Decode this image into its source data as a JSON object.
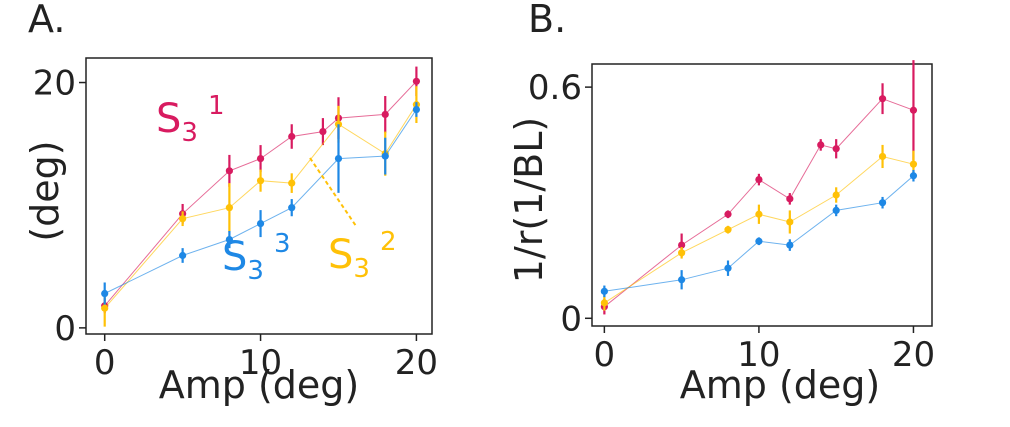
{
  "chart_data": [
    {
      "type": "line",
      "panel_label": "A.",
      "title": "",
      "xlabel": "Amp (deg)",
      "ylabel": "(deg)",
      "xlim": [
        -1.2,
        21
      ],
      "ylim": [
        -0.5,
        22
      ],
      "xticks": [
        "0",
        "10",
        "20"
      ],
      "yticks": [
        "0",
        "20"
      ],
      "grid": false,
      "legend": "none",
      "series": [
        {
          "color": "#d81b60",
          "annotation": {
            "base": "S",
            "sub": "3",
            "sup": "1"
          },
          "points": [
            {
              "x": 0,
              "y": 1.8,
              "err": 0.6
            },
            {
              "x": 5,
              "y": 9.3,
              "err": 0.8
            },
            {
              "x": 8,
              "y": 12.8,
              "err": 1.3
            },
            {
              "x": 10,
              "y": 13.8,
              "err": 1.1
            },
            {
              "x": 12,
              "y": 15.6,
              "err": 1.0
            },
            {
              "x": 14,
              "y": 16.0,
              "err": 1.1
            },
            {
              "x": 15,
              "y": 17.1,
              "err": 1.7
            },
            {
              "x": 18,
              "y": 17.4,
              "err": 1.5
            },
            {
              "x": 20,
              "y": 20.1,
              "err": 1.2
            }
          ]
        },
        {
          "color": "#ffc107",
          "annotation": {
            "base": "S",
            "sub": "3",
            "sup": "2"
          },
          "points": [
            {
              "x": 0,
              "y": 1.6,
              "err": 1.5
            },
            {
              "x": 5,
              "y": 8.9,
              "err": 0.6
            },
            {
              "x": 8,
              "y": 9.8,
              "err": 2.0
            },
            {
              "x": 10,
              "y": 12.0,
              "err": 0.9
            },
            {
              "x": 12,
              "y": 11.8,
              "err": 0.8
            },
            {
              "x": 15,
              "y": 16.6,
              "err": 1.5
            },
            {
              "x": 18,
              "y": 14.2,
              "err": 1.8
            },
            {
              "x": 20,
              "y": 18.2,
              "err": 1.5
            }
          ]
        },
        {
          "color": "#1e88e5",
          "annotation": {
            "base": "S",
            "sub": "3",
            "sup": "3"
          },
          "points": [
            {
              "x": 0,
              "y": 2.8,
              "err": 0.9
            },
            {
              "x": 5,
              "y": 5.9,
              "err": 0.6
            },
            {
              "x": 8,
              "y": 7.2,
              "err": 0.7
            },
            {
              "x": 10,
              "y": 8.5,
              "err": 1.1
            },
            {
              "x": 12,
              "y": 9.8,
              "err": 0.7
            },
            {
              "x": 15,
              "y": 13.8,
              "err": 2.8
            },
            {
              "x": 18,
              "y": 14.0,
              "err": 1.5
            },
            {
              "x": 20,
              "y": 17.8,
              "err": 0.6
            }
          ]
        }
      ]
    },
    {
      "type": "line",
      "panel_label": "B.",
      "title": "",
      "xlabel": "Amp (deg)",
      "ylabel": "1/r(1/BL)",
      "xlim": [
        -0.8,
        21.2
      ],
      "ylim": [
        -0.02,
        0.66
      ],
      "xticks": [
        "0",
        "10",
        "20"
      ],
      "yticks": [
        "0",
        "0.6"
      ],
      "grid": false,
      "legend": "none",
      "series": [
        {
          "color": "#d81b60",
          "points": [
            {
              "x": 0,
              "y": 0.03,
              "err": 0.02
            },
            {
              "x": 5,
              "y": 0.19,
              "err": 0.03
            },
            {
              "x": 8,
              "y": 0.27,
              "err": 0.01
            },
            {
              "x": 10,
              "y": 0.36,
              "err": 0.015
            },
            {
              "x": 12,
              "y": 0.31,
              "err": 0.015
            },
            {
              "x": 14,
              "y": 0.45,
              "err": 0.015
            },
            {
              "x": 15,
              "y": 0.44,
              "err": 0.025
            },
            {
              "x": 18,
              "y": 0.57,
              "err": 0.04
            },
            {
              "x": 20,
              "y": 0.54,
              "err": 0.13
            }
          ]
        },
        {
          "color": "#ffc107",
          "points": [
            {
              "x": 0,
              "y": 0.04,
              "err": 0.02
            },
            {
              "x": 5,
              "y": 0.17,
              "err": 0.015
            },
            {
              "x": 8,
              "y": 0.23,
              "err": 0.01
            },
            {
              "x": 10,
              "y": 0.27,
              "err": 0.025
            },
            {
              "x": 12,
              "y": 0.25,
              "err": 0.03
            },
            {
              "x": 15,
              "y": 0.32,
              "err": 0.02
            },
            {
              "x": 18,
              "y": 0.42,
              "err": 0.03
            },
            {
              "x": 20,
              "y": 0.4,
              "err": 0.035
            }
          ]
        },
        {
          "color": "#1e88e5",
          "points": [
            {
              "x": 0,
              "y": 0.07,
              "err": 0.015
            },
            {
              "x": 5,
              "y": 0.1,
              "err": 0.025
            },
            {
              "x": 8,
              "y": 0.13,
              "err": 0.02
            },
            {
              "x": 10,
              "y": 0.2,
              "err": 0.01
            },
            {
              "x": 12,
              "y": 0.19,
              "err": 0.015
            },
            {
              "x": 15,
              "y": 0.28,
              "err": 0.015
            },
            {
              "x": 18,
              "y": 0.3,
              "err": 0.015
            },
            {
              "x": 20,
              "y": 0.37,
              "err": 0.015
            }
          ]
        }
      ]
    }
  ]
}
